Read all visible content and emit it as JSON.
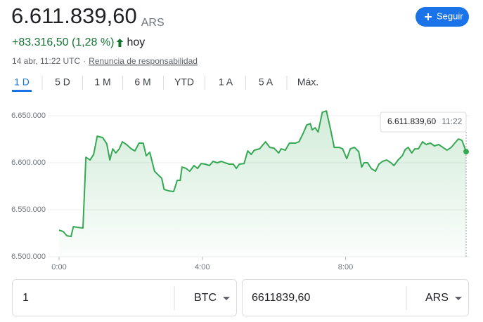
{
  "header": {
    "price": "6.611.839,60",
    "currency": "ARS",
    "change": "+83.316,50 (1,28 %)",
    "period": "hoy",
    "timestamp": "14 abr, 11:22 UTC",
    "separator": "·",
    "disclaimer": "Renuncia de responsabilidad"
  },
  "follow_button": "Seguir",
  "tabs": [
    "1 D",
    "5 D",
    "1 M",
    "6 M",
    "YTD",
    "1 A",
    "5 A",
    "Máx."
  ],
  "selected_tab": 0,
  "chart_data": {
    "type": "line",
    "color": "#34a853",
    "x": [
      0,
      7,
      13,
      20,
      24,
      31,
      40,
      45,
      52,
      58,
      64,
      73,
      80,
      85,
      90,
      95,
      101,
      106,
      113,
      121,
      127,
      134,
      141,
      146,
      152,
      160,
      167,
      172,
      176,
      184,
      192,
      198,
      203,
      206,
      213,
      219,
      226,
      232,
      238,
      245,
      252,
      258,
      265,
      272,
      278,
      285,
      292,
      297,
      302,
      310,
      316,
      322,
      327,
      336,
      342,
      346,
      353,
      360,
      368,
      372,
      379,
      386,
      396,
      402,
      409,
      415,
      421,
      424,
      429,
      434,
      441,
      448,
      455,
      461,
      469,
      475,
      482,
      488,
      495,
      502,
      507,
      511,
      517,
      523,
      530,
      536,
      542,
      549,
      556,
      561,
      568,
      575,
      580,
      585,
      591,
      596,
      602,
      609,
      615,
      622,
      629,
      636,
      643,
      650,
      657,
      663,
      669,
      675,
      682
    ],
    "values": [
      6528300,
      6526900,
      6522400,
      6521600,
      6532100,
      6531300,
      6530600,
      6605900,
      6602900,
      6608900,
      6628300,
      6626800,
      6620100,
      6602900,
      6614900,
      6610400,
      6614900,
      6622300,
      6619400,
      6614900,
      6612600,
      6620900,
      6620900,
      6607400,
      6611200,
      6591000,
      6586500,
      6583600,
      6571600,
      6570100,
      6569400,
      6581300,
      6581300,
      6595500,
      6594000,
      6591000,
      6597000,
      6594000,
      6599200,
      6598500,
      6597000,
      6601500,
      6600000,
      6601500,
      6600000,
      6598500,
      6598500,
      6594000,
      6598500,
      6599200,
      6612600,
      6608900,
      6613400,
      6614900,
      6619400,
      6622300,
      6616400,
      6615600,
      6610400,
      6614900,
      6613400,
      6620900,
      6620900,
      6622300,
      6631300,
      6640200,
      6641700,
      6635000,
      6637300,
      6632800,
      6653700,
      6655200,
      6635000,
      6616400,
      6616400,
      6614900,
      6604400,
      6614900,
      6616400,
      6611900,
      6595500,
      6600000,
      6600000,
      6594000,
      6591000,
      6598500,
      6601500,
      6602900,
      6600000,
      6597000,
      6602900,
      6607400,
      6614100,
      6616400,
      6610400,
      6614900,
      6614900,
      6622300,
      6619400,
      6620900,
      6617900,
      6619400,
      6616400,
      6613400,
      6616400,
      6620900,
      6625300,
      6623800,
      6611839.6
    ],
    "xlim": [
      0,
      682
    ],
    "xticks": [
      {
        "value": 0,
        "label": "0:00"
      },
      {
        "value": 240,
        "label": "4:00"
      },
      {
        "value": 480,
        "label": "8:00"
      }
    ],
    "ylim": [
      6500000,
      6661000
    ],
    "yticks": [
      {
        "value": 6500000,
        "label": "6.500.000"
      },
      {
        "value": 6550000,
        "label": "6.550.000"
      },
      {
        "value": 6600000,
        "label": "6.600.000"
      },
      {
        "value": 6650000,
        "label": "6.650.000"
      }
    ],
    "grid": true,
    "tooltip": {
      "value_label": "6.611.839,60",
      "time": "11:22"
    }
  },
  "converter": {
    "from": {
      "amount": "1",
      "currency": "BTC"
    },
    "to": {
      "amount": "6611839,60",
      "currency": "ARS"
    }
  }
}
